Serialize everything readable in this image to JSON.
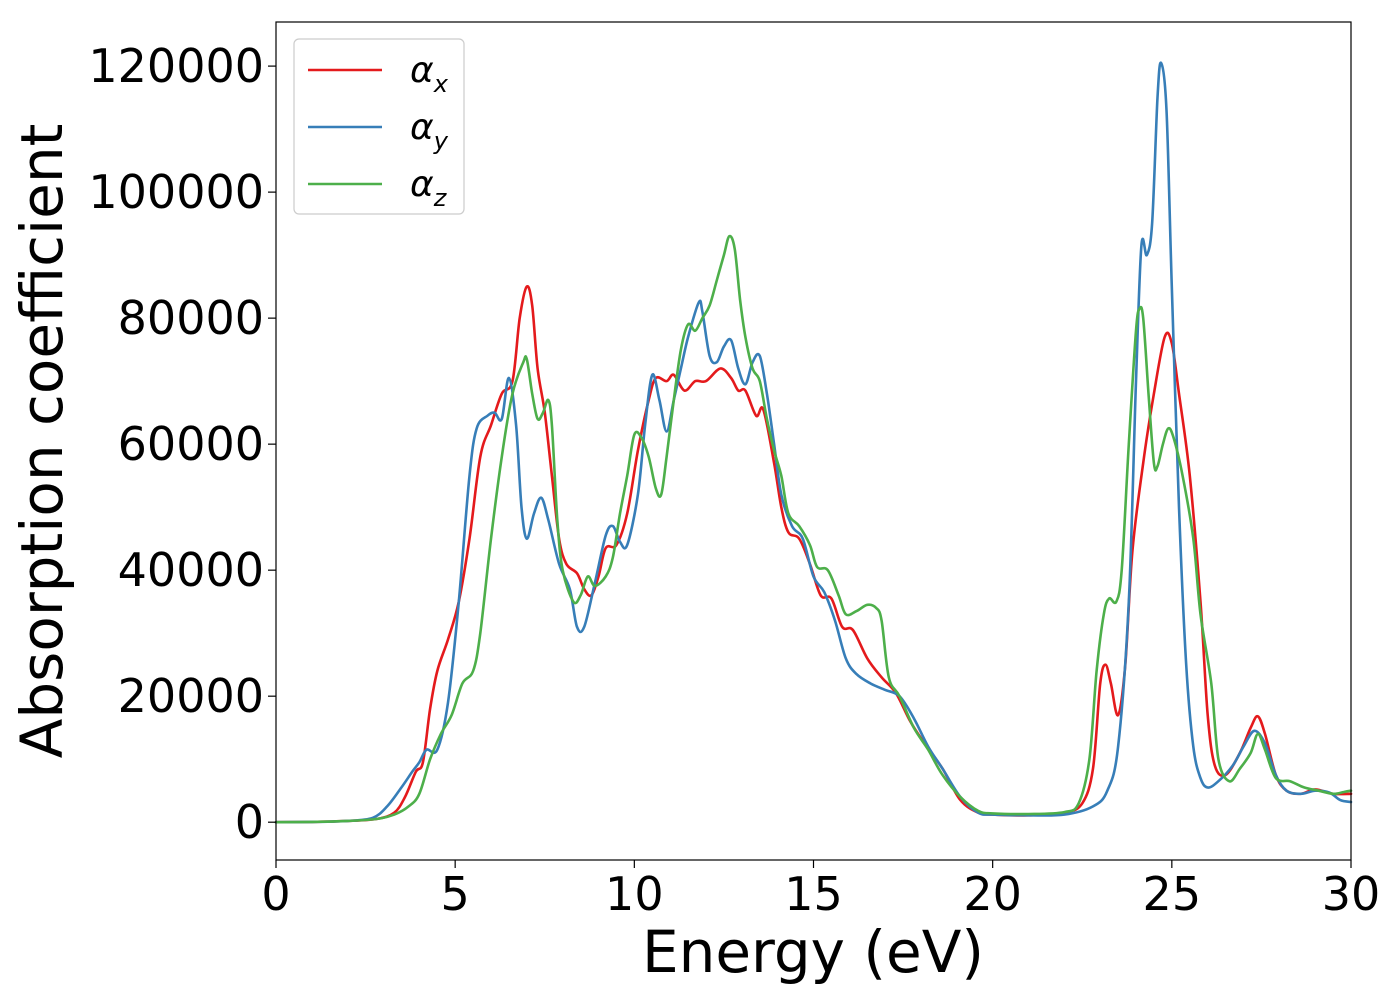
{
  "chart_data": {
    "type": "line",
    "title": "",
    "xlabel": "Energy (eV)",
    "ylabel": "Absorption coefficient",
    "xlim": [
      0,
      30
    ],
    "ylim": [
      -6000,
      127000
    ],
    "xticks": [
      0,
      5,
      10,
      15,
      20,
      25,
      30
    ],
    "yticks": [
      0,
      20000,
      40000,
      60000,
      80000,
      100000,
      120000
    ],
    "grid": false,
    "legend_position": "top-left",
    "series": [
      {
        "name": "α",
        "subscript": "x",
        "color": "#e41a1c",
        "points": [
          [
            0,
            0
          ],
          [
            1,
            50
          ],
          [
            2,
            200
          ],
          [
            2.8,
            500
          ],
          [
            3.3,
            1500
          ],
          [
            3.6,
            4000
          ],
          [
            3.9,
            8000
          ],
          [
            4.1,
            9500
          ],
          [
            4.3,
            18000
          ],
          [
            4.5,
            24000
          ],
          [
            4.8,
            29000
          ],
          [
            5.1,
            35000
          ],
          [
            5.4,
            45000
          ],
          [
            5.7,
            58000
          ],
          [
            6.0,
            63000
          ],
          [
            6.3,
            68000
          ],
          [
            6.6,
            70000
          ],
          [
            6.8,
            80000
          ],
          [
            7.0,
            85000
          ],
          [
            7.15,
            82000
          ],
          [
            7.3,
            72000
          ],
          [
            7.5,
            65000
          ],
          [
            7.7,
            55000
          ],
          [
            7.9,
            45000
          ],
          [
            8.1,
            41000
          ],
          [
            8.4,
            39500
          ],
          [
            8.6,
            37000
          ],
          [
            8.8,
            36000
          ],
          [
            9.0,
            39000
          ],
          [
            9.2,
            43500
          ],
          [
            9.5,
            44000
          ],
          [
            9.8,
            49000
          ],
          [
            10.1,
            59000
          ],
          [
            10.4,
            67000
          ],
          [
            10.6,
            70500
          ],
          [
            10.9,
            70000
          ],
          [
            11.1,
            71000
          ],
          [
            11.4,
            68500
          ],
          [
            11.7,
            70000
          ],
          [
            12.0,
            70000
          ],
          [
            12.4,
            72000
          ],
          [
            12.7,
            70500
          ],
          [
            12.9,
            68500
          ],
          [
            13.1,
            68500
          ],
          [
            13.4,
            64500
          ],
          [
            13.6,
            65500
          ],
          [
            13.9,
            57000
          ],
          [
            14.1,
            50000
          ],
          [
            14.3,
            46000
          ],
          [
            14.6,
            45000
          ],
          [
            14.9,
            41000
          ],
          [
            15.2,
            36000
          ],
          [
            15.5,
            35500
          ],
          [
            15.8,
            31000
          ],
          [
            16.1,
            30500
          ],
          [
            16.5,
            26000
          ],
          [
            16.9,
            23000
          ],
          [
            17.3,
            20500
          ],
          [
            17.7,
            16000
          ],
          [
            18.1,
            12500
          ],
          [
            18.6,
            8500
          ],
          [
            19.1,
            3500
          ],
          [
            19.6,
            1500
          ],
          [
            20,
            1200
          ],
          [
            21,
            1100
          ],
          [
            22,
            1500
          ],
          [
            22.5,
            3000
          ],
          [
            22.8,
            8500
          ],
          [
            23.0,
            22000
          ],
          [
            23.15,
            25000
          ],
          [
            23.3,
            22000
          ],
          [
            23.5,
            17000
          ],
          [
            23.7,
            25000
          ],
          [
            23.9,
            43000
          ],
          [
            24.2,
            57000
          ],
          [
            24.5,
            68000
          ],
          [
            24.8,
            77000
          ],
          [
            25.0,
            76000
          ],
          [
            25.2,
            68000
          ],
          [
            25.5,
            55000
          ],
          [
            25.8,
            35000
          ],
          [
            26.0,
            17000
          ],
          [
            26.2,
            9000
          ],
          [
            26.5,
            7500
          ],
          [
            26.9,
            11000
          ],
          [
            27.2,
            15000
          ],
          [
            27.4,
            16800
          ],
          [
            27.6,
            14000
          ],
          [
            27.9,
            7500
          ],
          [
            28.2,
            5000
          ],
          [
            28.6,
            4500
          ],
          [
            29.0,
            5200
          ],
          [
            29.5,
            4500
          ],
          [
            30,
            4500
          ]
        ]
      },
      {
        "name": "α",
        "subscript": "y",
        "color": "#377eb8",
        "points": [
          [
            0,
            0
          ],
          [
            1,
            50
          ],
          [
            2,
            200
          ],
          [
            2.7,
            700
          ],
          [
            3.1,
            2500
          ],
          [
            3.5,
            5500
          ],
          [
            3.8,
            8000
          ],
          [
            4.0,
            9500
          ],
          [
            4.2,
            11500
          ],
          [
            4.5,
            11500
          ],
          [
            4.8,
            19000
          ],
          [
            5.1,
            35000
          ],
          [
            5.4,
            55000
          ],
          [
            5.6,
            62500
          ],
          [
            5.9,
            64500
          ],
          [
            6.1,
            65000
          ],
          [
            6.3,
            64000
          ],
          [
            6.5,
            70500
          ],
          [
            6.7,
            63000
          ],
          [
            6.85,
            50000
          ],
          [
            7.0,
            45000
          ],
          [
            7.2,
            49000
          ],
          [
            7.4,
            51500
          ],
          [
            7.6,
            48000
          ],
          [
            7.9,
            41000
          ],
          [
            8.2,
            37000
          ],
          [
            8.4,
            31000
          ],
          [
            8.6,
            31000
          ],
          [
            8.9,
            38000
          ],
          [
            9.2,
            45500
          ],
          [
            9.4,
            47000
          ],
          [
            9.6,
            44500
          ],
          [
            9.8,
            44000
          ],
          [
            10.1,
            52000
          ],
          [
            10.3,
            63000
          ],
          [
            10.5,
            71000
          ],
          [
            10.7,
            67000
          ],
          [
            10.9,
            62000
          ],
          [
            11.1,
            67000
          ],
          [
            11.3,
            72000
          ],
          [
            11.5,
            77000
          ],
          [
            11.8,
            82500
          ],
          [
            11.9,
            81000
          ],
          [
            12.1,
            74000
          ],
          [
            12.3,
            73000
          ],
          [
            12.5,
            75500
          ],
          [
            12.7,
            76500
          ],
          [
            12.9,
            72000
          ],
          [
            13.1,
            69500
          ],
          [
            13.3,
            73000
          ],
          [
            13.5,
            74000
          ],
          [
            13.7,
            68000
          ],
          [
            13.9,
            60000
          ],
          [
            14.1,
            52000
          ],
          [
            14.4,
            47000
          ],
          [
            14.7,
            45000
          ],
          [
            15.0,
            39000
          ],
          [
            15.3,
            36500
          ],
          [
            15.6,
            32000
          ],
          [
            15.9,
            26000
          ],
          [
            16.2,
            23500
          ],
          [
            16.6,
            22000
          ],
          [
            17.0,
            21000
          ],
          [
            17.4,
            20000
          ],
          [
            17.8,
            16500
          ],
          [
            18.2,
            12000
          ],
          [
            18.6,
            8500
          ],
          [
            19.1,
            4000
          ],
          [
            19.6,
            1500
          ],
          [
            20,
            1200
          ],
          [
            21,
            1100
          ],
          [
            22,
            1200
          ],
          [
            22.8,
            2500
          ],
          [
            23.2,
            5000
          ],
          [
            23.5,
            12000
          ],
          [
            23.8,
            35000
          ],
          [
            24.0,
            70000
          ],
          [
            24.15,
            91500
          ],
          [
            24.3,
            90000
          ],
          [
            24.45,
            95000
          ],
          [
            24.6,
            115000
          ],
          [
            24.7,
            120500
          ],
          [
            24.85,
            113000
          ],
          [
            25.0,
            85000
          ],
          [
            25.2,
            50000
          ],
          [
            25.4,
            25000
          ],
          [
            25.6,
            12000
          ],
          [
            25.8,
            7000
          ],
          [
            26.0,
            5500
          ],
          [
            26.3,
            6500
          ],
          [
            26.7,
            9000
          ],
          [
            27.0,
            12000
          ],
          [
            27.3,
            14500
          ],
          [
            27.6,
            12500
          ],
          [
            27.9,
            7500
          ],
          [
            28.2,
            5000
          ],
          [
            28.6,
            4500
          ],
          [
            29.0,
            5000
          ],
          [
            29.4,
            4700
          ],
          [
            29.7,
            3500
          ],
          [
            30,
            3200
          ]
        ]
      },
      {
        "name": "α",
        "subscript": "z",
        "color": "#4daf4a",
        "points": [
          [
            0,
            0
          ],
          [
            1,
            50
          ],
          [
            2,
            200
          ],
          [
            2.8,
            500
          ],
          [
            3.3,
            1200
          ],
          [
            3.7,
            2500
          ],
          [
            4.0,
            4500
          ],
          [
            4.3,
            10000
          ],
          [
            4.6,
            14000
          ],
          [
            4.9,
            17000
          ],
          [
            5.2,
            22000
          ],
          [
            5.5,
            24000
          ],
          [
            5.7,
            30000
          ],
          [
            6.0,
            45000
          ],
          [
            6.3,
            58000
          ],
          [
            6.6,
            68000
          ],
          [
            6.9,
            73000
          ],
          [
            7.0,
            73500
          ],
          [
            7.15,
            68000
          ],
          [
            7.3,
            64000
          ],
          [
            7.45,
            65000
          ],
          [
            7.6,
            67000
          ],
          [
            7.7,
            63000
          ],
          [
            7.85,
            48000
          ],
          [
            8.0,
            40000
          ],
          [
            8.3,
            35000
          ],
          [
            8.5,
            36000
          ],
          [
            8.7,
            39000
          ],
          [
            8.9,
            37500
          ],
          [
            9.2,
            39000
          ],
          [
            9.4,
            42000
          ],
          [
            9.6,
            49000
          ],
          [
            9.8,
            55000
          ],
          [
            10.0,
            61500
          ],
          [
            10.2,
            61000
          ],
          [
            10.4,
            58000
          ],
          [
            10.6,
            53000
          ],
          [
            10.75,
            52000
          ],
          [
            10.9,
            58000
          ],
          [
            11.1,
            67000
          ],
          [
            11.3,
            75000
          ],
          [
            11.5,
            79000
          ],
          [
            11.7,
            78000
          ],
          [
            11.9,
            80000
          ],
          [
            12.1,
            82000
          ],
          [
            12.3,
            86000
          ],
          [
            12.5,
            90000
          ],
          [
            12.65,
            93000
          ],
          [
            12.8,
            91000
          ],
          [
            12.95,
            83000
          ],
          [
            13.1,
            77000
          ],
          [
            13.3,
            72000
          ],
          [
            13.5,
            70000
          ],
          [
            13.7,
            64000
          ],
          [
            13.9,
            59000
          ],
          [
            14.1,
            55000
          ],
          [
            14.3,
            49000
          ],
          [
            14.6,
            47000
          ],
          [
            14.9,
            44000
          ],
          [
            15.1,
            40500
          ],
          [
            15.4,
            40000
          ],
          [
            15.7,
            36000
          ],
          [
            15.9,
            33000
          ],
          [
            16.2,
            33500
          ],
          [
            16.5,
            34500
          ],
          [
            16.75,
            34000
          ],
          [
            16.9,
            32000
          ],
          [
            17.1,
            23000
          ],
          [
            17.4,
            20000
          ],
          [
            17.8,
            15000
          ],
          [
            18.2,
            11500
          ],
          [
            18.6,
            7500
          ],
          [
            19.1,
            4000
          ],
          [
            19.6,
            1800
          ],
          [
            20,
            1400
          ],
          [
            21,
            1300
          ],
          [
            22,
            1600
          ],
          [
            22.4,
            3000
          ],
          [
            22.7,
            10000
          ],
          [
            22.9,
            24000
          ],
          [
            23.1,
            33000
          ],
          [
            23.25,
            35500
          ],
          [
            23.45,
            35000
          ],
          [
            23.6,
            40000
          ],
          [
            23.8,
            60000
          ],
          [
            24.0,
            78000
          ],
          [
            24.1,
            81500
          ],
          [
            24.2,
            80000
          ],
          [
            24.35,
            68000
          ],
          [
            24.5,
            57000
          ],
          [
            24.6,
            56500
          ],
          [
            24.75,
            60000
          ],
          [
            24.9,
            62500
          ],
          [
            25.05,
            61000
          ],
          [
            25.3,
            55000
          ],
          [
            25.6,
            45000
          ],
          [
            25.8,
            33000
          ],
          [
            26.1,
            22000
          ],
          [
            26.3,
            10000
          ],
          [
            26.6,
            6500
          ],
          [
            26.9,
            8500
          ],
          [
            27.2,
            11000
          ],
          [
            27.4,
            14000
          ],
          [
            27.6,
            11500
          ],
          [
            27.9,
            7000
          ],
          [
            28.3,
            6500
          ],
          [
            28.7,
            5500
          ],
          [
            29.1,
            5000
          ],
          [
            29.5,
            4500
          ],
          [
            29.8,
            4800
          ],
          [
            30,
            5000
          ]
        ]
      }
    ]
  }
}
